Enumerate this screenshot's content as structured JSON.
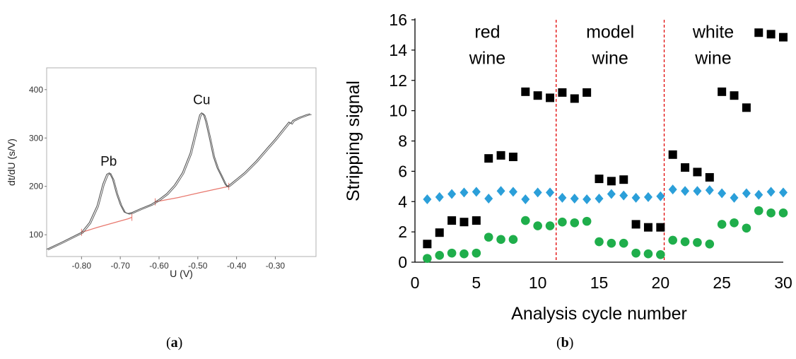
{
  "panels": {
    "a": {
      "open": "(",
      "letter": "a",
      "close": ")"
    },
    "b": {
      "open": "(",
      "letter": "b",
      "close": ")"
    }
  },
  "colors": {
    "trace": "#555555",
    "baseline": "#e8786e",
    "black_series": "#000000",
    "blue_series": "#2b9fd9",
    "green_series": "#1fae4b",
    "divider": "#e00000"
  },
  "chart_data": [
    {
      "type": "line",
      "xlabel": "U (V)",
      "ylabel": "dt/dU (s/V)",
      "xlim": [
        -0.89,
        -0.195
      ],
      "ylim": [
        55,
        445
      ],
      "x_ticks": [
        -0.8,
        -0.7,
        -0.6,
        -0.5,
        -0.4,
        -0.3
      ],
      "x_tick_labels": [
        "-0.80",
        "-0.70",
        "-0.60",
        "-0.50",
        "-0.40",
        "-0.30"
      ],
      "y_ticks": [
        100,
        200,
        300,
        400
      ],
      "y_tick_labels": [
        "100",
        "200",
        "300",
        "400"
      ],
      "annotations": [
        {
          "text": "Pb",
          "x": -0.73,
          "y": 243
        },
        {
          "text": "Cu",
          "x": -0.49,
          "y": 370
        }
      ],
      "series": [
        {
          "x": [
            -0.89,
            -0.85,
            -0.8,
            -0.78,
            -0.76,
            -0.745,
            -0.735,
            -0.728,
            -0.72,
            -0.71,
            -0.7,
            -0.69,
            -0.68,
            -0.67,
            -0.65,
            -0.62,
            -0.6,
            -0.58,
            -0.56,
            -0.54,
            -0.52,
            -0.51,
            -0.5,
            -0.495,
            -0.49,
            -0.485,
            -0.48,
            -0.47,
            -0.46,
            -0.45,
            -0.44,
            -0.43,
            -0.425,
            -0.42,
            -0.4,
            -0.38,
            -0.35,
            -0.32,
            -0.3,
            -0.28,
            -0.27,
            -0.265,
            -0.26,
            -0.255,
            -0.25,
            -0.24,
            -0.23,
            -0.22,
            -0.21
          ],
          "y": [
            70,
            85,
            105,
            125,
            160,
            205,
            225,
            228,
            215,
            185,
            162,
            147,
            144,
            146,
            153,
            163,
            173,
            185,
            203,
            228,
            268,
            300,
            333,
            348,
            352,
            348,
            335,
            300,
            262,
            238,
            222,
            205,
            200,
            202,
            215,
            228,
            252,
            280,
            298,
            318,
            328,
            333,
            330,
            336,
            338,
            342,
            345,
            348,
            350
          ]
        },
        {
          "x": [
            -0.8,
            -0.76,
            -0.72,
            -0.68,
            -0.67
          ],
          "y": [
            105,
            115,
            124,
            133,
            136
          ]
        },
        {
          "x": [
            -0.61,
            -0.55,
            -0.5,
            -0.45,
            -0.42
          ],
          "y": [
            168,
            177,
            186,
            195,
            200
          ]
        }
      ]
    },
    {
      "type": "scatter",
      "xlabel": "Analysis cycle number",
      "ylabel": "Stripping signal",
      "xlim": [
        0,
        30
      ],
      "ylim": [
        0,
        16
      ],
      "x_ticks": [
        0,
        5,
        10,
        15,
        20,
        25,
        30
      ],
      "y_ticks": [
        0,
        2,
        4,
        6,
        8,
        10,
        12,
        14,
        16
      ],
      "region_dividers": [
        11.5,
        20.3
      ],
      "annotations": [
        {
          "lines": [
            "red",
            "wine"
          ],
          "x": 5.9,
          "y": 14.8
        },
        {
          "lines": [
            "model",
            "wine"
          ],
          "x": 15.9,
          "y": 14.8
        },
        {
          "lines": [
            "white",
            "wine"
          ],
          "x": 24.3,
          "y": 14.8
        }
      ],
      "series": [
        {
          "marker": "square",
          "x": [
            1,
            2,
            3,
            4,
            5,
            6,
            7,
            8,
            9,
            10,
            11,
            12,
            13,
            14,
            15,
            16,
            17,
            18,
            19,
            20,
            21,
            22,
            23,
            24,
            25,
            26,
            27,
            28,
            29,
            30
          ],
          "values": [
            1.2,
            1.95,
            2.75,
            2.65,
            2.75,
            6.85,
            7.05,
            6.95,
            11.25,
            11.0,
            10.85,
            11.2,
            10.8,
            11.2,
            5.5,
            5.35,
            5.45,
            2.5,
            2.3,
            2.3,
            7.1,
            6.25,
            5.95,
            5.6,
            11.25,
            11.0,
            10.2,
            15.15,
            15.05,
            14.85
          ]
        },
        {
          "marker": "diamond",
          "x": [
            1,
            2,
            3,
            4,
            5,
            6,
            7,
            8,
            9,
            10,
            11,
            12,
            13,
            14,
            15,
            16,
            17,
            18,
            19,
            20,
            21,
            22,
            23,
            24,
            25,
            26,
            27,
            28,
            29,
            30
          ],
          "values": [
            4.15,
            4.3,
            4.5,
            4.6,
            4.65,
            4.2,
            4.7,
            4.65,
            4.15,
            4.6,
            4.6,
            4.25,
            4.2,
            4.15,
            4.2,
            4.5,
            4.4,
            4.25,
            4.3,
            4.35,
            4.8,
            4.7,
            4.7,
            4.75,
            4.55,
            4.25,
            4.55,
            4.45,
            4.65,
            4.6
          ]
        },
        {
          "marker": "circle",
          "x": [
            1,
            2,
            3,
            4,
            5,
            6,
            7,
            8,
            9,
            10,
            11,
            12,
            13,
            14,
            15,
            16,
            17,
            18,
            19,
            20,
            21,
            22,
            23,
            24,
            25,
            26,
            27,
            28,
            29,
            30
          ],
          "values": [
            0.25,
            0.45,
            0.6,
            0.55,
            0.6,
            1.65,
            1.5,
            1.5,
            2.75,
            2.4,
            2.4,
            2.65,
            2.6,
            2.7,
            1.35,
            1.25,
            1.25,
            0.6,
            0.55,
            0.5,
            1.45,
            1.35,
            1.3,
            1.2,
            2.5,
            2.6,
            2.25,
            3.4,
            3.25,
            3.25
          ]
        }
      ]
    }
  ]
}
